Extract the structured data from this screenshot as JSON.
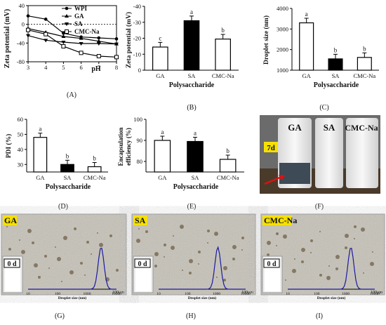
{
  "panels": [
    {
      "label": "(A)"
    },
    {
      "label": "(B)"
    },
    {
      "label": "(C)"
    },
    {
      "label": "(D)"
    },
    {
      "label": "(E)"
    },
    {
      "label": "(F)"
    },
    {
      "label": "(G)"
    },
    {
      "label": "(H)"
    },
    {
      "label": "(I)"
    }
  ],
  "chart_data": [
    {
      "id": "A",
      "type": "line",
      "ylabel": "Zeta potential (mV)",
      "xlabel": "pH",
      "x": [
        3,
        4,
        5,
        6,
        7,
        8
      ],
      "xticks": [
        "3",
        "4",
        "5",
        "6",
        "7",
        "8"
      ],
      "ylim": [
        -80,
        40
      ],
      "yticks": [
        "-80",
        "-40",
        "0",
        "40"
      ],
      "series": [
        {
          "name": "WPI",
          "values": [
            18,
            11,
            -19,
            -27,
            -29,
            -31
          ],
          "marker": "filled-circle"
        },
        {
          "name": "GA",
          "values": [
            -9,
            -17,
            -26,
            -30,
            -36,
            -42
          ],
          "marker": "filled-triangle"
        },
        {
          "name": "SA",
          "values": [
            -24,
            -34,
            -38,
            -41,
            -41,
            -42
          ],
          "marker": "filled-triangle-down"
        },
        {
          "name": "CMC-Na",
          "values": [
            -12,
            -21,
            -47,
            -61,
            -68,
            -70
          ],
          "marker": "open-square"
        }
      ]
    },
    {
      "id": "B",
      "type": "bar",
      "ylabel": "Zeta potential (mV)",
      "xlabel": "Polysaccharide",
      "categories": [
        "GA",
        "SA",
        "CMC-Na"
      ],
      "values": [
        -14.5,
        -31,
        -19.5
      ],
      "letters": [
        "c",
        "a",
        "b"
      ],
      "fills": [
        "#ffffff",
        "#000000",
        "#ffffff"
      ],
      "ylim": [
        0,
        -40
      ],
      "yticks": [
        "0",
        "-10",
        "-20",
        "-30",
        "-40"
      ]
    },
    {
      "id": "C",
      "type": "bar",
      "ylabel": "Droplet size (nm)",
      "xlabel": "Polysaccharide",
      "categories": [
        "GA",
        "SA",
        "CMC-Na"
      ],
      "values": [
        3300,
        1550,
        1620
      ],
      "letters": [
        "a",
        "b",
        "b"
      ],
      "fills": [
        "#ffffff",
        "#000000",
        "#ffffff"
      ],
      "ylim": [
        1000,
        4000
      ],
      "yticks": [
        "1000",
        "2000",
        "3000",
        "4000"
      ]
    },
    {
      "id": "D",
      "type": "bar",
      "ylabel": "PDI (%)",
      "xlabel": "Polysaccharide",
      "categories": [
        "GA",
        "SA",
        "CMC-Na"
      ],
      "values": [
        48,
        30,
        28.5
      ],
      "letters": [
        "a",
        "b",
        "b"
      ],
      "fills": [
        "#ffffff",
        "#000000",
        "#ffffff"
      ],
      "ylim": [
        25,
        60
      ],
      "yticks": [
        "30",
        "40",
        "50",
        "60"
      ]
    },
    {
      "id": "E",
      "type": "bar",
      "ylabel": "Encapsulation efficiency (%)",
      "xlabel": "Polysaccharide",
      "categories": [
        "GA",
        "SA",
        "CMC-Na"
      ],
      "values": [
        90,
        89.5,
        81
      ],
      "letters": [
        "a",
        "a",
        "b"
      ],
      "fills": [
        "#ffffff",
        "#000000",
        "#ffffff"
      ],
      "ylim": [
        75,
        100
      ],
      "yticks": [
        "80",
        "90",
        "100"
      ]
    }
  ],
  "photo_F": {
    "labels": [
      "GA",
      "SA",
      "CMC-Na"
    ],
    "day": "7d"
  },
  "micrographs": [
    {
      "id": "G",
      "sample": "GA",
      "day": "0 d",
      "peak_nm": 3000,
      "scale": "100μm"
    },
    {
      "id": "H",
      "sample": "SA",
      "day": "0 d",
      "peak_nm": 1100,
      "scale": "100μm"
    },
    {
      "id": "I",
      "sample": "CMC-Na",
      "day": "0 d",
      "peak_nm": 1500,
      "scale": "100μm"
    }
  ],
  "dist_xlabel": "Droplet size (nm)",
  "dist_ticks": [
    "10",
    "100",
    "1000",
    "10000"
  ]
}
